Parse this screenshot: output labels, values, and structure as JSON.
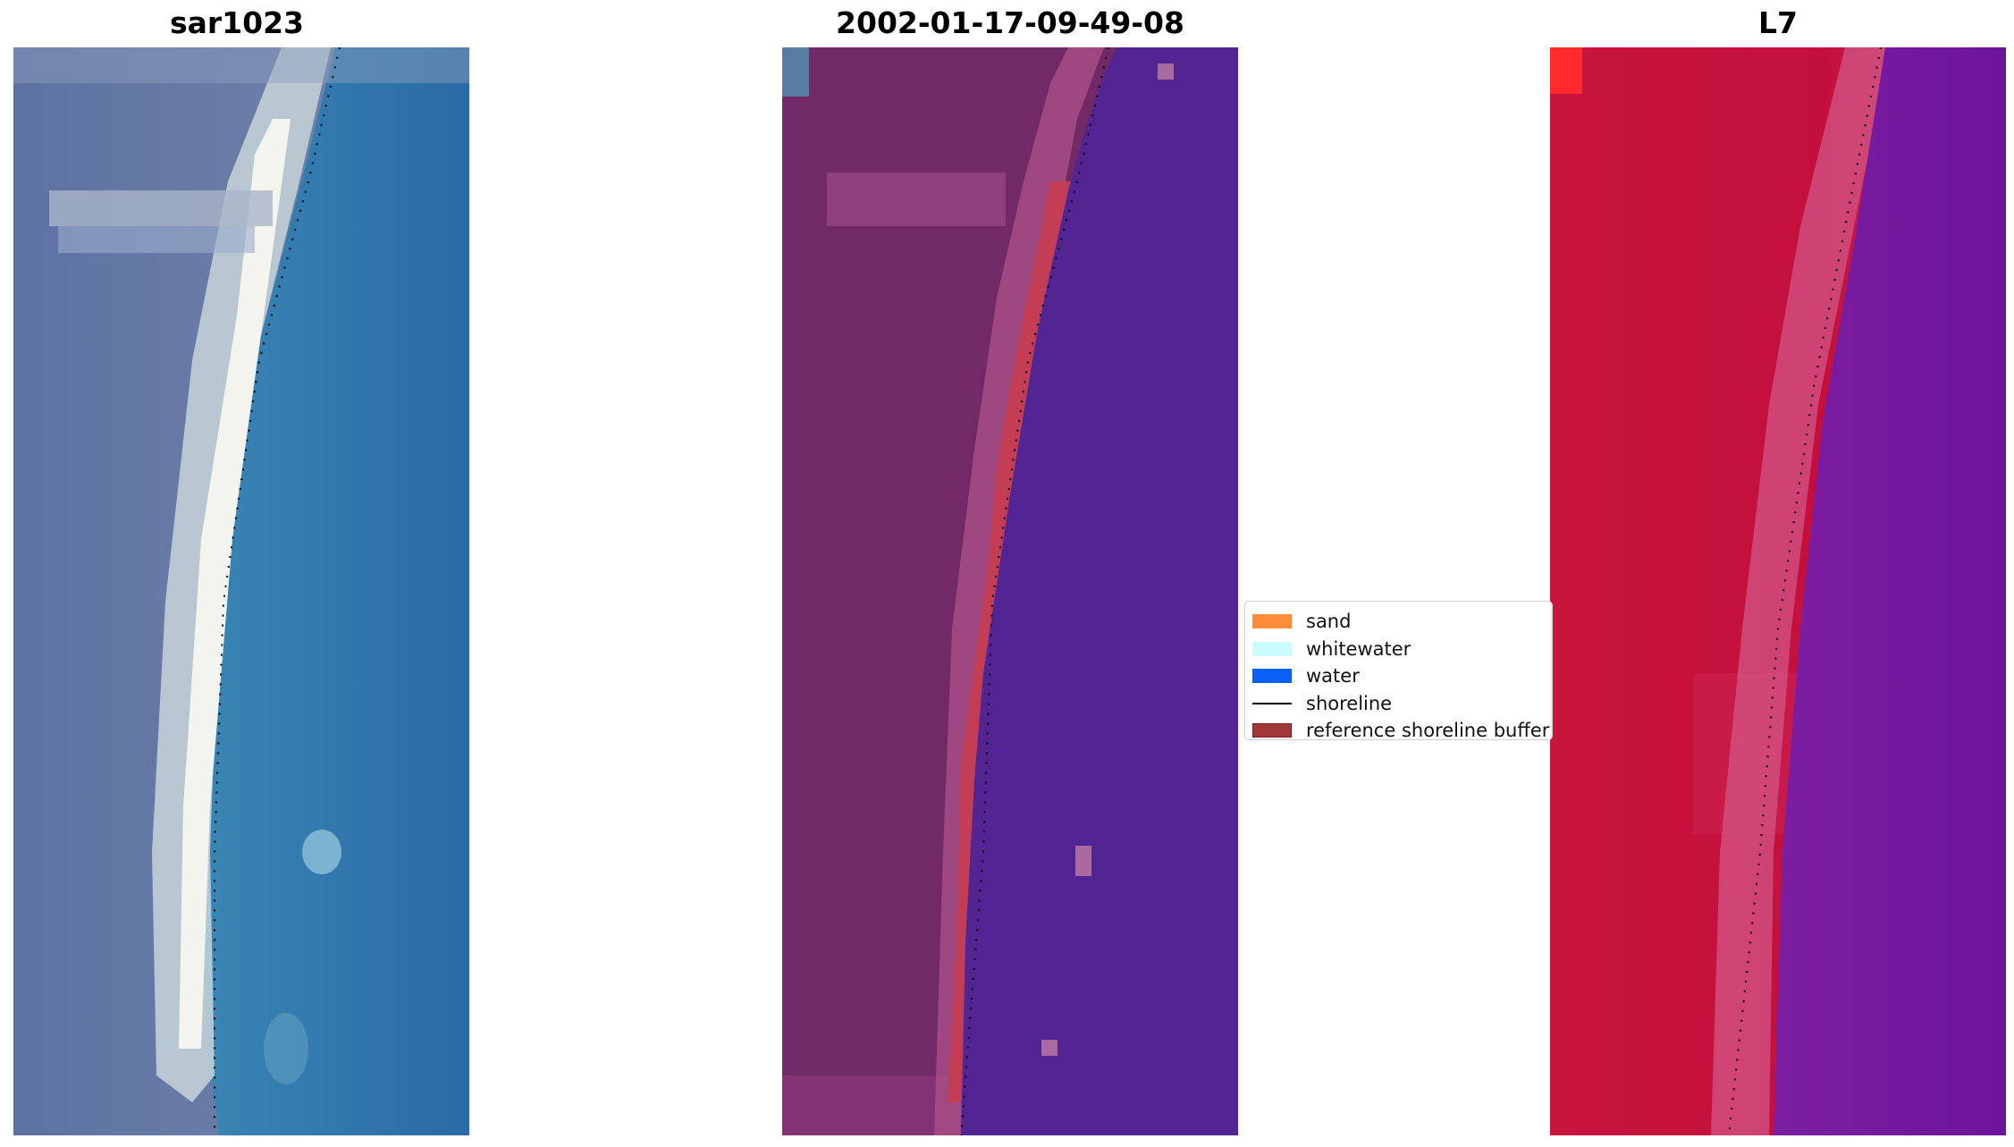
{
  "panels": [
    {
      "title": "sar1023"
    },
    {
      "title": "2002-01-17-09-49-08"
    },
    {
      "title": "L7"
    }
  ],
  "legend": {
    "items": [
      {
        "label": "sand",
        "color": "#ff8c3a",
        "kind": "patch"
      },
      {
        "label": "whitewater",
        "color": "#c9fbff",
        "kind": "patch"
      },
      {
        "label": "water",
        "color": "#0a5ff5",
        "kind": "patch"
      },
      {
        "label": "shoreline",
        "color": "#000000",
        "kind": "line"
      },
      {
        "label": "reference shoreline buffer",
        "color": "#a03838",
        "kind": "patch"
      }
    ]
  },
  "colors": {
    "rgb_sand": "#e9eef0",
    "rgb_land": "#6b7fa8",
    "rgb_water": "#2f77ab",
    "classified_land": "#742a68",
    "classified_water": "#522592",
    "classified_buffer": "#c0404f",
    "ndwi_land": "#c8103c",
    "ndwi_water": "#72169c"
  }
}
